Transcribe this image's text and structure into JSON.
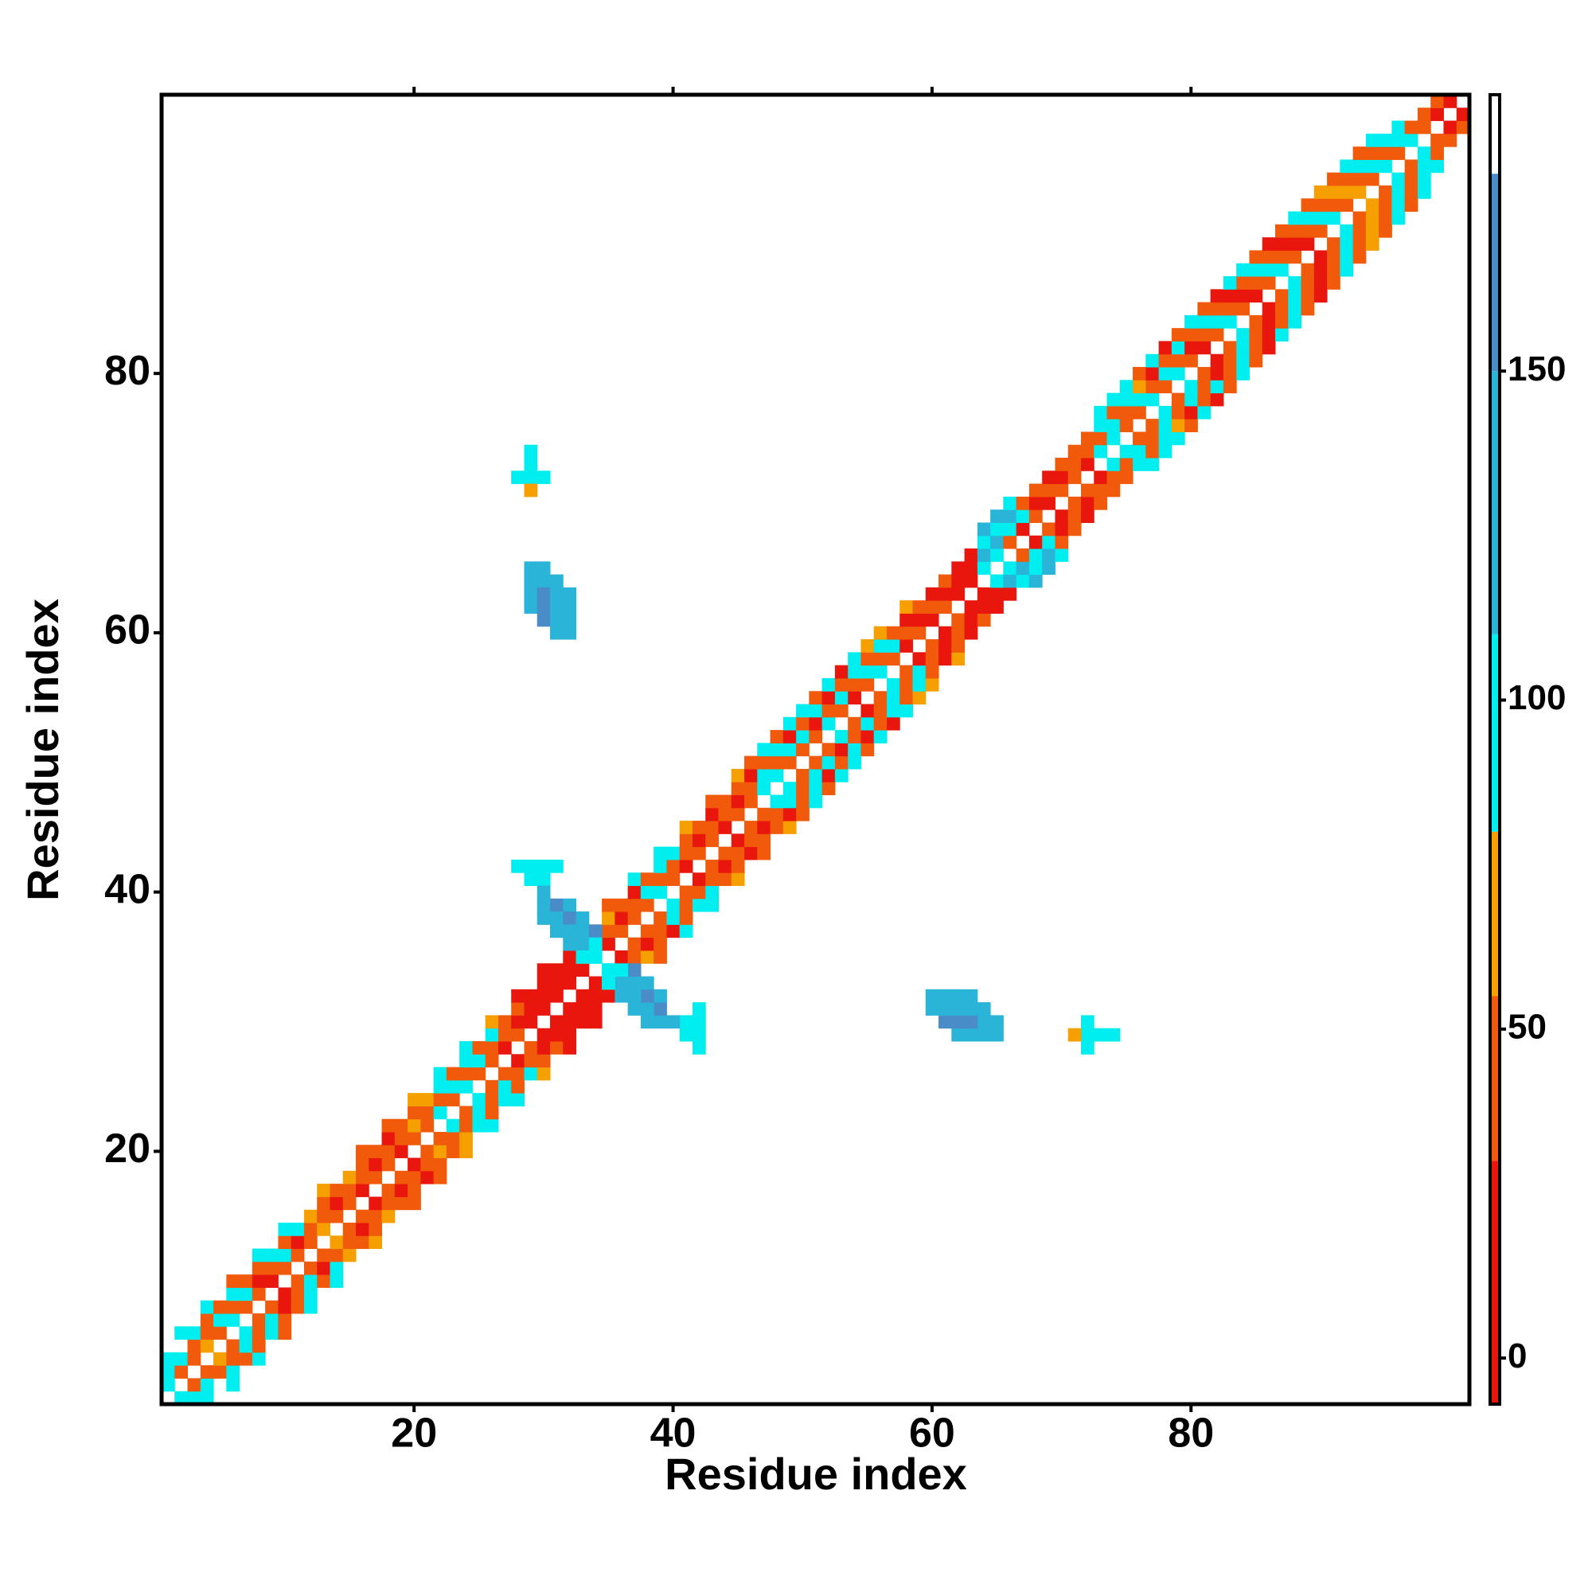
{
  "chart_data": {
    "type": "heatmap",
    "xlabel": "Residue index",
    "ylabel": "Residue index",
    "xlim": [
      0.5,
      101.5
    ],
    "ylim": [
      0.5,
      101.5
    ],
    "xticks": [
      20,
      40,
      60,
      80
    ],
    "yticks": [
      20,
      40,
      60,
      80
    ],
    "clim": [
      -7,
      192
    ],
    "cticks": [
      0,
      50,
      100,
      150
    ],
    "colorscale": [
      {
        "value": -7,
        "color": "#e8160c"
      },
      {
        "value": 30,
        "color": "#f05a0a"
      },
      {
        "value": 55,
        "color": "#f5a000"
      },
      {
        "value": 80,
        "color": "#00eef0"
      },
      {
        "value": 110,
        "color": "#2ab4d8"
      },
      {
        "value": 150,
        "color": "#4a8cc8"
      },
      {
        "value": 180,
        "color": "#ffffff"
      }
    ],
    "symmetric": true,
    "band": [
      [
        95,
        95,
        95,
        null
      ],
      [
        40,
        95,
        null,
        95
      ],
      [
        40,
        40,
        95,
        null
      ],
      [
        65,
        40,
        40,
        95
      ],
      [
        40,
        95,
        40,
        null
      ],
      [
        95,
        40,
        95,
        40
      ],
      [
        40,
        95,
        40,
        null
      ],
      [
        40,
        10,
        40,
        95
      ],
      [
        10,
        40,
        95,
        null
      ],
      [
        40,
        95,
        40,
        95
      ],
      [
        40,
        10,
        95,
        null
      ],
      [
        40,
        40,
        65,
        null
      ],
      [
        65,
        40,
        40,
        65
      ],
      [
        40,
        10,
        40,
        null
      ],
      [
        40,
        40,
        65,
        null
      ],
      [
        10,
        40,
        40,
        40
      ],
      [
        40,
        10,
        40,
        null
      ],
      [
        40,
        40,
        10,
        40
      ],
      [
        10,
        40,
        40,
        null
      ],
      [
        40,
        65,
        40,
        65
      ],
      [
        40,
        40,
        65,
        null
      ],
      [
        95,
        40,
        95,
        95
      ],
      [
        40,
        95,
        40,
        null
      ],
      [
        95,
        40,
        95,
        95
      ],
      [
        40,
        95,
        40,
        null
      ],
      [
        40,
        40,
        95,
        65
      ],
      [
        10,
        40,
        40,
        null
      ],
      [
        40,
        10,
        40,
        10
      ],
      [
        10,
        10,
        10,
        null
      ],
      [
        10,
        10,
        10,
        10
      ],
      [
        10,
        10,
        10,
        null
      ],
      [
        10,
        10,
        10,
        null
      ],
      [
        10,
        65,
        95,
        null
      ],
      [
        95,
        95,
        40,
        null
      ],
      [
        10,
        40,
        65,
        40
      ],
      [
        40,
        10,
        40,
        null
      ],
      [
        40,
        40,
        10,
        95
      ],
      [
        40,
        95,
        40,
        null
      ],
      [
        95,
        40,
        95,
        95
      ],
      [
        40,
        40,
        95,
        null
      ],
      [
        10,
        40,
        40,
        65
      ],
      [
        40,
        10,
        40,
        null
      ],
      [
        40,
        40,
        10,
        40
      ],
      [
        10,
        40,
        40,
        null
      ],
      [
        40,
        10,
        40,
        65
      ],
      [
        40,
        40,
        10,
        40
      ],
      [
        95,
        95,
        40,
        95
      ],
      [
        95,
        40,
        95,
        40
      ],
      [
        40,
        95,
        10,
        95
      ],
      [
        40,
        95,
        40,
        95
      ],
      [
        40,
        10,
        95,
        40
      ],
      [
        95,
        40,
        10,
        95
      ],
      [
        40,
        95,
        40,
        10
      ],
      [
        10,
        40,
        95,
        95
      ],
      [
        40,
        95,
        40,
        65
      ],
      [
        95,
        40,
        95,
        65
      ],
      [
        40,
        95,
        40,
        null
      ],
      [
        10,
        40,
        10,
        65
      ],
      [
        40,
        10,
        40,
        null
      ],
      [
        10,
        40,
        10,
        null
      ],
      [
        40,
        10,
        40,
        null
      ],
      [
        10,
        10,
        10,
        null
      ],
      [
        10,
        10,
        10,
        null
      ],
      [
        95,
        130,
        95,
        130
      ],
      [
        95,
        130,
        95,
        130
      ],
      [
        40,
        95,
        130,
        95
      ],
      [
        10,
        95,
        40,
        null
      ],
      [
        40,
        10,
        40,
        null
      ],
      [
        10,
        40,
        10,
        null
      ],
      [
        40,
        10,
        40,
        null
      ],
      [
        40,
        40,
        40,
        null
      ],
      [
        10,
        40,
        40,
        null
      ],
      [
        95,
        40,
        95,
        95
      ],
      [
        95,
        95,
        40,
        95
      ],
      [
        40,
        40,
        95,
        95
      ],
      [
        40,
        95,
        65,
        40
      ],
      [
        95,
        40,
        10,
        95
      ],
      [
        40,
        95,
        40,
        10
      ],
      [
        95,
        40,
        95,
        40
      ],
      [
        40,
        10,
        40,
        95
      ],
      [
        10,
        40,
        95,
        40
      ],
      [
        40,
        95,
        40,
        10
      ],
      [
        95,
        40,
        10,
        95
      ],
      [
        40,
        10,
        40,
        95
      ],
      [
        10,
        40,
        95,
        40
      ],
      [
        40,
        95,
        40,
        10
      ],
      [
        95,
        40,
        10,
        40
      ],
      [
        40,
        10,
        40,
        95
      ],
      [
        10,
        40,
        95,
        40
      ],
      [
        40,
        95,
        40,
        65
      ],
      [
        95,
        40,
        65,
        40
      ],
      [
        40,
        65,
        40,
        95
      ],
      [
        65,
        40,
        95,
        40
      ],
      [
        40,
        95,
        40,
        95
      ],
      [
        95,
        40,
        95,
        null
      ],
      [
        40,
        95,
        95,
        null
      ],
      [
        95,
        40,
        null,
        null
      ],
      [
        40,
        40,
        null,
        null
      ],
      [
        10,
        40,
        null,
        null
      ],
      [
        10,
        null,
        null,
        null
      ]
    ],
    "patches": {
      "x": [
        29,
        29,
        28,
        29,
        30,
        29,
        29,
        30,
        29,
        30,
        31,
        29,
        30,
        31,
        32,
        29,
        30,
        31,
        32,
        30,
        31,
        32,
        31,
        32,
        28,
        29,
        30,
        31,
        29,
        30,
        30,
        30,
        31,
        32,
        30,
        31,
        32,
        33,
        31,
        32,
        33,
        34,
        32,
        33,
        34,
        33,
        34
      ],
      "y": [
        74,
        73,
        72,
        72,
        72,
        71,
        65,
        65,
        64,
        64,
        64,
        63,
        63,
        63,
        63,
        62,
        62,
        62,
        62,
        61,
        61,
        61,
        60,
        60,
        42,
        42,
        42,
        42,
        41,
        41,
        40,
        39,
        39,
        39,
        38,
        38,
        38,
        38,
        37,
        37,
        37,
        37,
        36,
        36,
        36,
        35,
        35
      ],
      "values": [
        95,
        95,
        95,
        95,
        95,
        65,
        130,
        130,
        130,
        130,
        130,
        130,
        160,
        130,
        130,
        130,
        160,
        130,
        130,
        160,
        130,
        130,
        130,
        130,
        95,
        95,
        95,
        95,
        95,
        95,
        130,
        130,
        160,
        130,
        130,
        130,
        160,
        130,
        130,
        130,
        130,
        160,
        130,
        130,
        95,
        95,
        95
      ]
    }
  }
}
